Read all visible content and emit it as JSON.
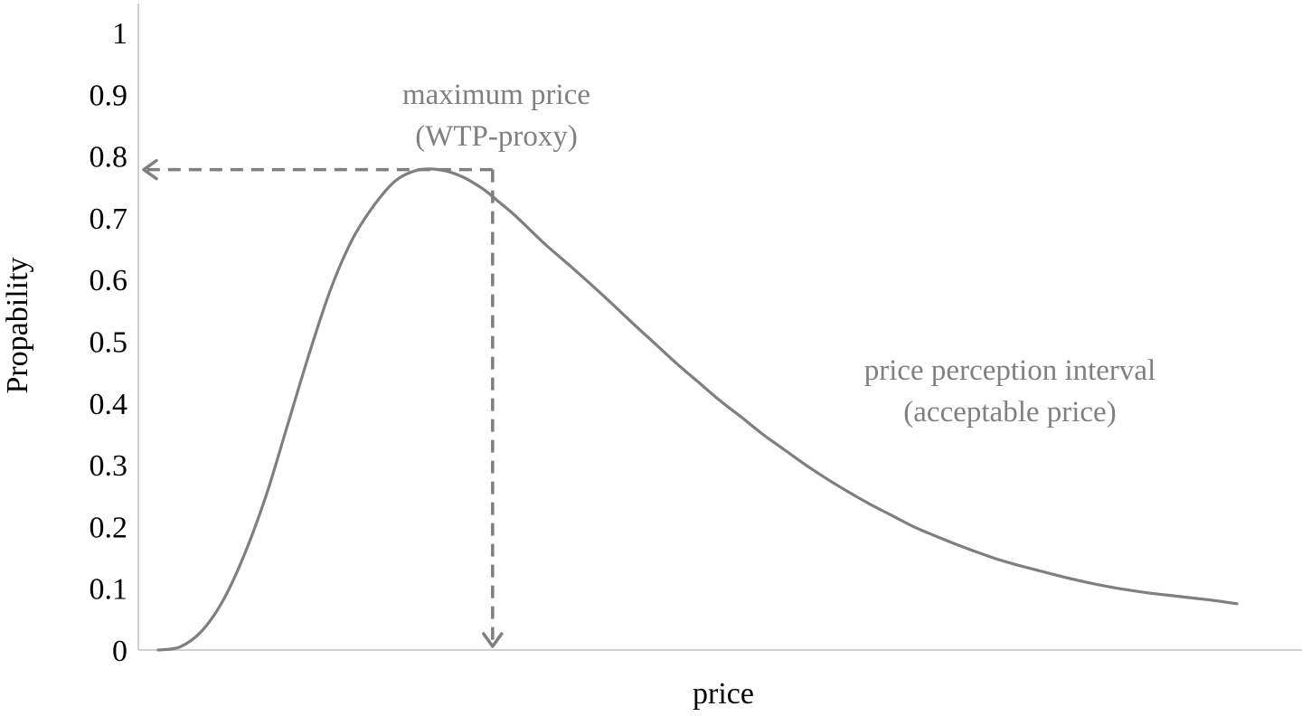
{
  "chart_data": {
    "type": "line",
    "title": "",
    "xlabel": "price",
    "ylabel": "Propability",
    "ylim": [
      0,
      1
    ],
    "yticks": [
      "0",
      "0.1",
      "0.2",
      "0.3",
      "0.4",
      "0.5",
      "0.6",
      "0.7",
      "0.8",
      "0.9",
      "1"
    ],
    "xlim": [
      0,
      1
    ],
    "grid": false,
    "series": [
      {
        "color": "#7f7f7f",
        "x": [
          0,
          0.02,
          0.04,
          0.06,
          0.08,
          0.1,
          0.12,
          0.14,
          0.16,
          0.18,
          0.2,
          0.22,
          0.24,
          0.26,
          0.28,
          0.3,
          0.315,
          0.33,
          0.345,
          0.36,
          0.38,
          0.4,
          0.42,
          0.44,
          0.46,
          0.48,
          0.5,
          0.52,
          0.54,
          0.56,
          0.58,
          0.6,
          0.62,
          0.64,
          0.66,
          0.68,
          0.7,
          0.72,
          0.74,
          0.76,
          0.78,
          0.8,
          0.82,
          0.84,
          0.86,
          0.88,
          0.9,
          0.92,
          0.94,
          0.96,
          0.98,
          1.0
        ],
        "y": [
          0.0,
          0.005,
          0.03,
          0.08,
          0.155,
          0.25,
          0.365,
          0.48,
          0.585,
          0.665,
          0.72,
          0.76,
          0.777,
          0.778,
          0.768,
          0.748,
          0.727,
          0.705,
          0.68,
          0.655,
          0.625,
          0.594,
          0.562,
          0.529,
          0.497,
          0.465,
          0.435,
          0.405,
          0.378,
          0.35,
          0.325,
          0.3,
          0.277,
          0.256,
          0.236,
          0.218,
          0.2,
          0.185,
          0.171,
          0.158,
          0.146,
          0.136,
          0.127,
          0.118,
          0.11,
          0.103,
          0.097,
          0.092,
          0.088,
          0.084,
          0.08,
          0.075
        ]
      }
    ],
    "annotations": [
      {
        "lines": [
          "maximum price",
          "(WTP-proxy)"
        ],
        "color": "#808080"
      },
      {
        "lines": [
          "price perception interval",
          "(acceptable price)"
        ],
        "color": "#808080"
      }
    ],
    "reference": {
      "x": 0.31,
      "y": 0.778,
      "style": "dashed-arrows",
      "color": "#7f7f7f"
    },
    "axis_color": "#d0d0d0"
  }
}
